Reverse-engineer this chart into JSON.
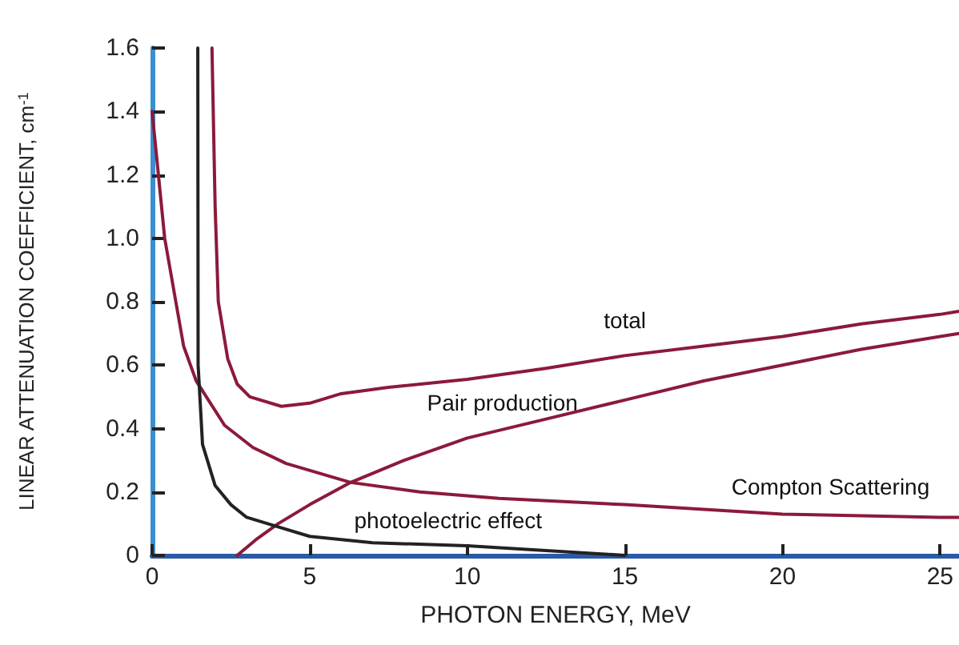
{
  "chart_data": {
    "type": "line",
    "xlabel": "PHOTON ENERGY, MeV",
    "ylabel": "LINEAR ATTENUATION COEFFICIENT, cm$^{-1}$",
    "xlim": [
      0,
      25.6
    ],
    "xticks": [
      0,
      5,
      10,
      15,
      20,
      25
    ],
    "ylim": [
      0,
      1.6
    ],
    "yticks": [
      0,
      0.2,
      0.4,
      0.6,
      0.8,
      {
        "value": 1,
        "label": "1.0"
      },
      1.2,
      1.4,
      1.6
    ],
    "grid": false,
    "legend": false,
    "marker": "none",
    "line_style": "solid",
    "series": [
      {
        "name": "total",
        "color": "#8b1a3a",
        "x": [
          1.9,
          2.0,
          2.1,
          2.4,
          2.7,
          3.1,
          4.1,
          5,
          6,
          7.5,
          10,
          12.5,
          15,
          17.5,
          20,
          22.5,
          25,
          25.6
        ],
        "values": [
          1.6,
          1.1,
          0.8,
          0.62,
          0.54,
          0.5,
          0.47,
          0.48,
          0.51,
          0.53,
          0.555,
          0.59,
          0.63,
          0.66,
          0.69,
          0.73,
          0.76,
          0.77
        ]
      },
      {
        "name": "Pair production",
        "color": "#8b1a3a",
        "x": [
          2.7,
          3.3,
          4,
          5,
          6.3,
          8,
          10,
          12.5,
          15,
          17.5,
          20,
          22.5,
          25,
          25.6
        ],
        "values": [
          0,
          0.05,
          0.1,
          0.16,
          0.23,
          0.3,
          0.37,
          0.43,
          0.49,
          0.55,
          0.6,
          0.65,
          0.69,
          0.7
        ]
      },
      {
        "name": "Compton Scattering",
        "color": "#8b1a3a",
        "x": [
          0,
          0.2,
          0.4,
          1,
          1.4,
          2.3,
          3.2,
          4.25,
          6.3,
          8.5,
          11,
          15,
          20,
          25,
          25.6
        ],
        "values": [
          1.4,
          1.2,
          1.0,
          0.66,
          0.55,
          0.41,
          0.34,
          0.29,
          0.23,
          0.2,
          0.18,
          0.16,
          0.13,
          0.12,
          0.12
        ]
      },
      {
        "name": "photoelectric effect",
        "color": "#222222",
        "x": [
          1.45,
          1.46,
          1.6,
          2,
          2.5,
          3,
          4,
          5,
          7,
          10,
          12.5,
          15
        ],
        "values": [
          1.6,
          0.6,
          0.35,
          0.22,
          0.16,
          0.12,
          0.09,
          0.06,
          0.04,
          0.03,
          0.015,
          0
        ]
      }
    ]
  }
}
